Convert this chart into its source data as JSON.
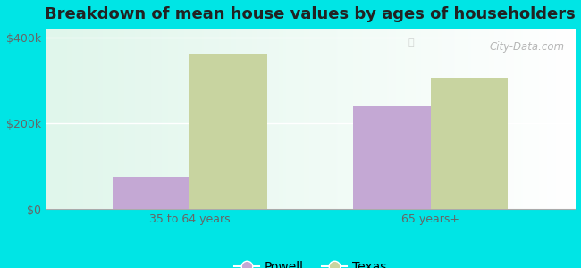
{
  "title": "Breakdown of mean house values by ages of householders",
  "categories": [
    "35 to 64 years",
    "65 years+"
  ],
  "series": {
    "Powell": [
      75000,
      240000
    ],
    "Texas": [
      360000,
      305000
    ]
  },
  "bar_colors": {
    "Powell": "#c4a8d4",
    "Texas": "#c8d4a0"
  },
  "background_color": "#00e5e5",
  "ylim": [
    0,
    420000
  ],
  "yticks": [
    0,
    200000,
    400000
  ],
  "ytick_labels": [
    "$0",
    "$200k",
    "$400k"
  ],
  "bar_width": 0.32,
  "title_fontsize": 13,
  "tick_fontsize": 9,
  "legend_fontsize": 10,
  "watermark": "City-Data.com"
}
